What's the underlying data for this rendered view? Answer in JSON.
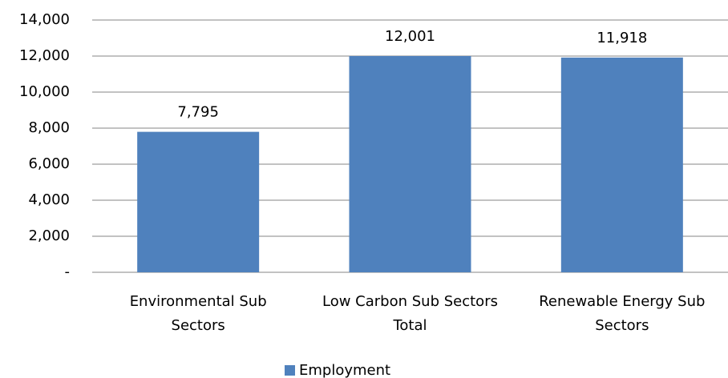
{
  "chart_data": {
    "type": "bar",
    "categories": [
      "Environmental Sub Sectors",
      "Low Carbon Sub Sectors Total",
      "Renewable Energy Sub Sectors"
    ],
    "series": [
      {
        "name": "Employment",
        "color": "#4f81bd",
        "values": [
          7795,
          12001,
          11918
        ],
        "value_labels": [
          "7,795",
          "12,001",
          "11,918"
        ]
      }
    ],
    "ylim": [
      0,
      14000
    ],
    "yticks": [
      {
        "value": 0,
        "label": "-"
      },
      {
        "value": 2000,
        "label": "2,000"
      },
      {
        "value": 4000,
        "label": "4,000"
      },
      {
        "value": 6000,
        "label": "6,000"
      },
      {
        "value": 8000,
        "label": "8,000"
      },
      {
        "value": 10000,
        "label": "10,000"
      },
      {
        "value": 12000,
        "label": "12,000"
      },
      {
        "value": 14000,
        "label": "14,000"
      }
    ],
    "grid": true,
    "legend": "bottom"
  }
}
